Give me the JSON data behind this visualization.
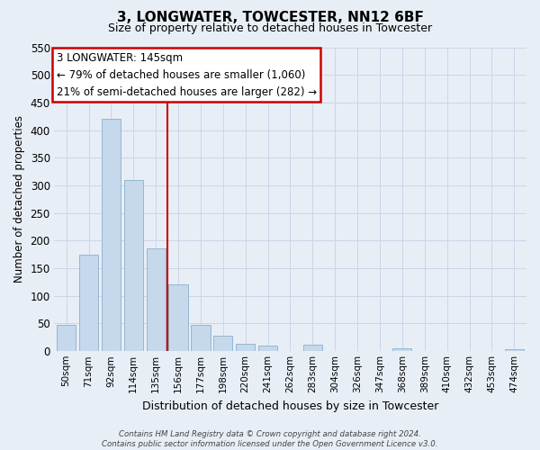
{
  "title": "3, LONGWATER, TOWCESTER, NN12 6BF",
  "subtitle": "Size of property relative to detached houses in Towcester",
  "xlabel": "Distribution of detached houses by size in Towcester",
  "ylabel": "Number of detached properties",
  "bar_color": "#c5d8ec",
  "bar_edge_color": "#8ab0cc",
  "categories": [
    "50sqm",
    "71sqm",
    "92sqm",
    "114sqm",
    "135sqm",
    "156sqm",
    "177sqm",
    "198sqm",
    "220sqm",
    "241sqm",
    "262sqm",
    "283sqm",
    "304sqm",
    "326sqm",
    "347sqm",
    "368sqm",
    "389sqm",
    "410sqm",
    "432sqm",
    "453sqm",
    "474sqm"
  ],
  "values": [
    47,
    175,
    420,
    310,
    185,
    120,
    47,
    27,
    13,
    10,
    0,
    11,
    0,
    0,
    0,
    5,
    0,
    0,
    0,
    0,
    3
  ],
  "ylim": [
    0,
    550
  ],
  "yticks": [
    0,
    50,
    100,
    150,
    200,
    250,
    300,
    350,
    400,
    450,
    500,
    550
  ],
  "vline_x": 4.5,
  "vline_color": "#cc0000",
  "annotation_title": "3 LONGWATER: 145sqm",
  "annotation_line1": "← 79% of detached houses are smaller (1,060)",
  "annotation_line2": "21% of semi-detached houses are larger (282) →",
  "annotation_box_facecolor": "#ffffff",
  "annotation_box_edgecolor": "#cc0000",
  "footer1": "Contains HM Land Registry data © Crown copyright and database right 2024.",
  "footer2": "Contains public sector information licensed under the Open Government Licence v3.0.",
  "grid_color": "#ccd6e8",
  "background_color": "#e8eef6"
}
